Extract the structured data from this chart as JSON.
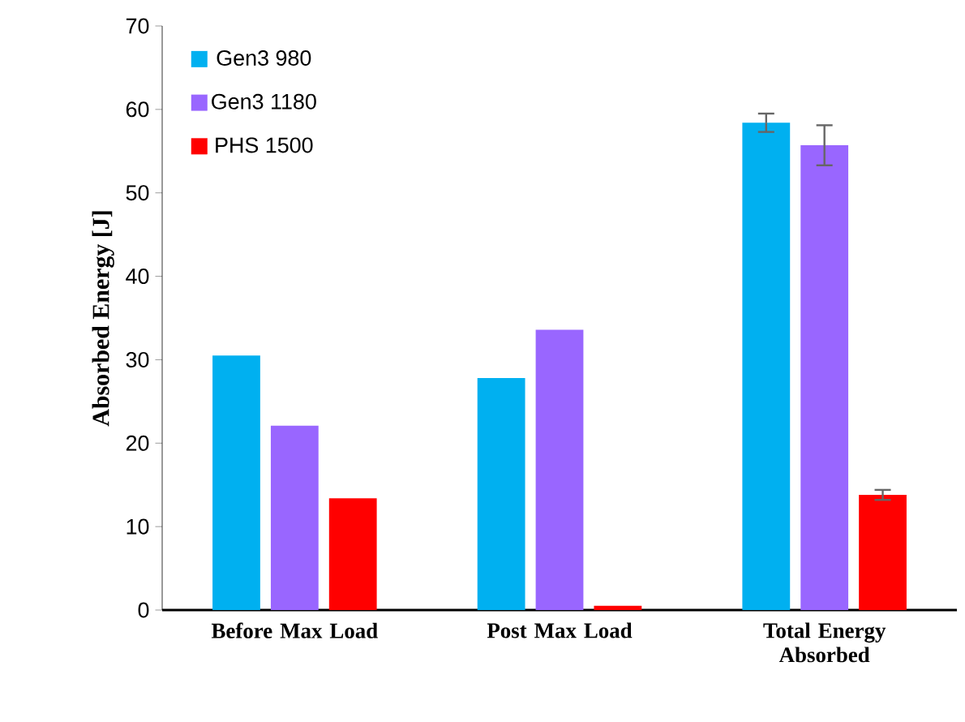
{
  "chart_data": {
    "type": "bar",
    "ylabel": "Absorbed Energy [J]",
    "categories": [
      "Before Max Load",
      "Post Max Load",
      "Total Energy Absorbed"
    ],
    "series": [
      {
        "name": "Gen3 980",
        "color": "#00b0f0",
        "values": [
          30.5,
          27.8,
          58.4
        ],
        "errors": [
          null,
          null,
          1.1
        ]
      },
      {
        "name": "Gen3 1180",
        "color": "#9966ff",
        "values": [
          22.1,
          33.6,
          55.7
        ],
        "errors": [
          null,
          null,
          2.4
        ]
      },
      {
        "name": "PHS 1500",
        "color": "#ff0000",
        "values": [
          13.4,
          0.5,
          13.8
        ],
        "errors": [
          null,
          null,
          0.6
        ]
      }
    ],
    "ylim": [
      0,
      70
    ],
    "yticks": [
      0,
      10,
      20,
      30,
      40,
      50,
      60,
      70
    ],
    "grid": false,
    "legend": "top left"
  }
}
